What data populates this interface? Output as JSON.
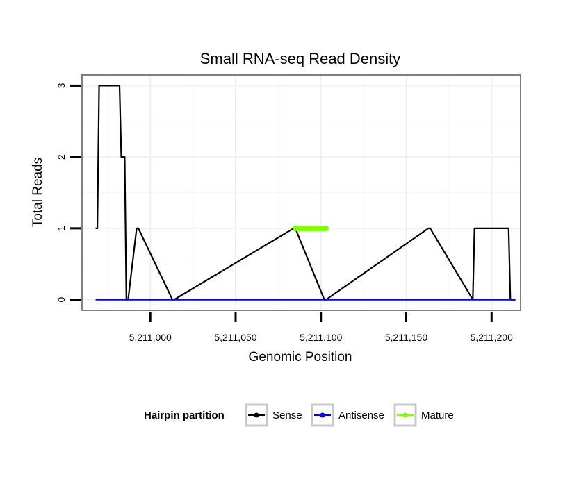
{
  "chart_data": {
    "type": "line",
    "title": "Small RNA-seq Read Density",
    "xlabel": "Genomic Position",
    "ylabel": "Total Reads",
    "xlim": [
      5210960,
      5211217
    ],
    "ylim": [
      -0.15,
      3.15
    ],
    "x_ticks": [
      5211000,
      5211050,
      5211100,
      5211150,
      5211200
    ],
    "x_tick_labels": [
      "5,211,000",
      "5,211,050",
      "5,211,100",
      "5,211,150",
      "5,211,200"
    ],
    "y_ticks": [
      0,
      1,
      2,
      3
    ],
    "y_tick_labels": [
      "0",
      "1",
      "2",
      "3"
    ],
    "grid": true,
    "legend": {
      "title": "Hairpin partition",
      "position": "bottom",
      "entries": [
        "Sense",
        "Antisense",
        "Mature"
      ]
    },
    "series": [
      {
        "name": "Sense",
        "color": "#000000",
        "x": [
          5210968,
          5210969,
          5210970,
          5210982,
          5210983,
          5210985,
          5210986,
          5210987,
          5210992,
          5210993,
          5211013,
          5211014,
          5211084,
          5211085,
          5211102,
          5211103,
          5211163,
          5211164,
          5211189,
          5211190,
          5211191,
          5211210,
          5211211,
          5211214
        ],
        "y": [
          1,
          1,
          3,
          3,
          2,
          2,
          0,
          0,
          1,
          1,
          0,
          0,
          1,
          1,
          0,
          0,
          1,
          1,
          0,
          1,
          1,
          1,
          0,
          0
        ]
      },
      {
        "name": "Antisense",
        "color": "#0000ff",
        "x": [
          5210968,
          5211214
        ],
        "y": [
          0,
          0
        ]
      },
      {
        "name": "Mature",
        "color": "#7fff00",
        "x": [
          5211085,
          5211103
        ],
        "y": [
          1,
          1
        ]
      }
    ]
  }
}
